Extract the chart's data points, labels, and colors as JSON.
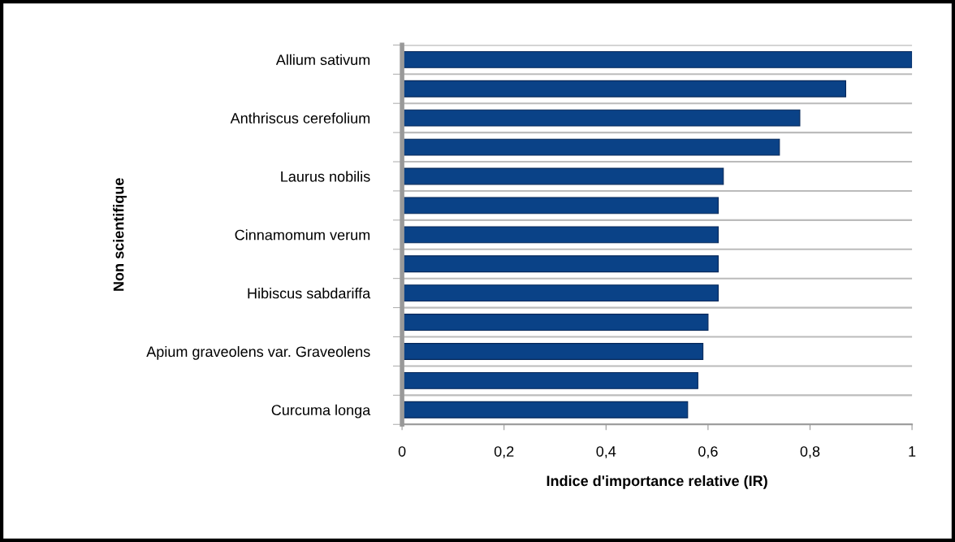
{
  "chart_data": {
    "type": "bar",
    "orientation": "horizontal",
    "categories": [
      "Allium sativum",
      null,
      "Anthriscus cerefolium",
      null,
      "Laurus nobilis",
      null,
      "Cinnamomum verum",
      null,
      "Hibiscus sabdariffa",
      null,
      "Apium graveolens var. Graveolens",
      null,
      "Curcuma longa"
    ],
    "values": [
      1.0,
      0.87,
      0.78,
      0.74,
      0.63,
      0.62,
      0.62,
      0.62,
      0.62,
      0.6,
      0.59,
      0.58,
      0.56
    ],
    "color": "#0a4287",
    "xlabel": "Indice d'importance relative (IR)",
    "ylabel": "Non scientifique",
    "xlim": [
      0,
      1
    ],
    "xticks": [
      0,
      {
        "value": 0.2,
        "label": "0,2"
      },
      {
        "value": 0.4,
        "label": "0,4"
      },
      {
        "value": 0.6,
        "label": "0,6"
      },
      {
        "value": 0.8,
        "label": "0,8"
      },
      1
    ],
    "grid": "y"
  }
}
